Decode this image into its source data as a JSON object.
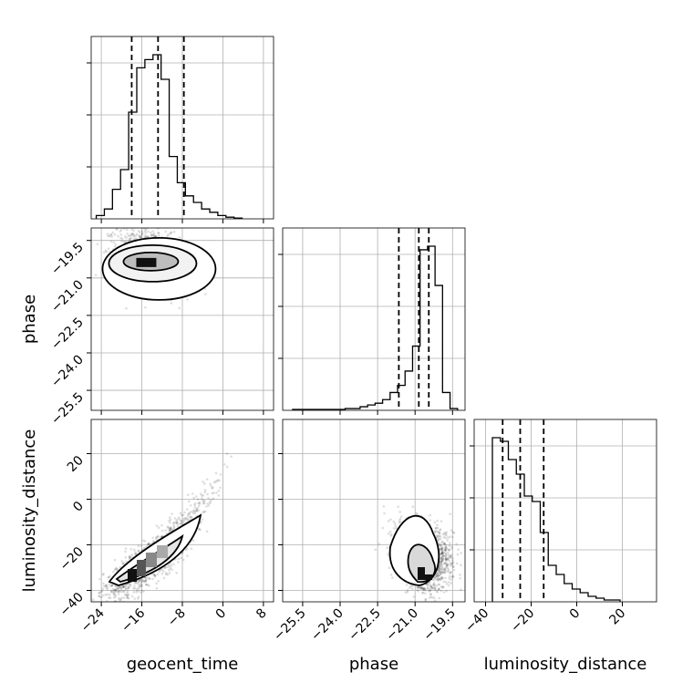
{
  "chart_data": {
    "type": "corner",
    "parameters": [
      "geocent_time",
      "phase",
      "luminosity_distance"
    ],
    "axis_labels": {
      "geocent_time": "geocent_time",
      "phase": "phase",
      "luminosity_distance": "luminosity_distance"
    },
    "grid": true,
    "ranges": {
      "geocent_time": [
        -26,
        10
      ],
      "phase": [
        -26.3,
        -19.0
      ],
      "luminosity_distance": [
        -45,
        35
      ]
    },
    "ticks": {
      "geocent_time": {
        "values": [
          -24,
          -16,
          -8,
          0,
          8
        ],
        "labels": [
          "−24",
          "−16",
          "−8",
          "0",
          "8"
        ]
      },
      "phase": {
        "values": [
          -25.5,
          -24.0,
          -22.5,
          -21.0,
          -19.5
        ],
        "labels": [
          "−25.5",
          "−24.0",
          "−22.5",
          "−21.0",
          "−19.5"
        ]
      },
      "luminosity_distance": {
        "values": [
          -40,
          -20,
          0,
          20
        ],
        "labels": [
          "−40",
          "−20",
          "0",
          "20"
        ]
      }
    },
    "histograms": {
      "geocent_time": {
        "bin_start": -25,
        "bin_width": 1.6,
        "counts": [
          2,
          6,
          18,
          30,
          65,
          92,
          97,
          100,
          85,
          38,
          22,
          14,
          10,
          6,
          4,
          2,
          1,
          0.5
        ],
        "quantiles": [
          -18.0,
          -12.8,
          -7.7
        ]
      },
      "phase": {
        "bin_start": -25.9,
        "bin_width": 0.3,
        "counts": [
          0.5,
          0.5,
          0.5,
          0.5,
          0.5,
          0.5,
          0.5,
          1,
          1,
          2,
          3,
          4,
          6,
          10,
          14,
          22,
          36,
          90,
          92,
          70,
          10,
          1
        ],
        "quantiles": [
          -21.65,
          -20.85,
          -20.45
        ]
      },
      "luminosity_distance": {
        "bin_start": -37,
        "bin_width": 3.5,
        "counts": [
          90,
          88,
          78,
          70,
          58,
          55,
          38,
          20,
          15,
          10,
          7,
          5,
          3,
          2,
          1,
          1
        ],
        "quantiles": [
          -32.5,
          -24.8,
          -14.5
        ]
      }
    },
    "scatter_2d": [
      {
        "x": "geocent_time",
        "y": "phase",
        "center": [
          -13.5,
          -20.2
        ],
        "spread": [
          3.6,
          0.55
        ]
      },
      {
        "x": "geocent_time",
        "y": "luminosity_distance",
        "center": [
          -13.5,
          -26.0
        ],
        "spread": [
          5.0,
          9.0
        ]
      },
      {
        "x": "phase",
        "y": "luminosity_distance",
        "center": [
          -20.6,
          -28.0
        ],
        "spread": [
          0.55,
          7.0
        ]
      }
    ]
  }
}
